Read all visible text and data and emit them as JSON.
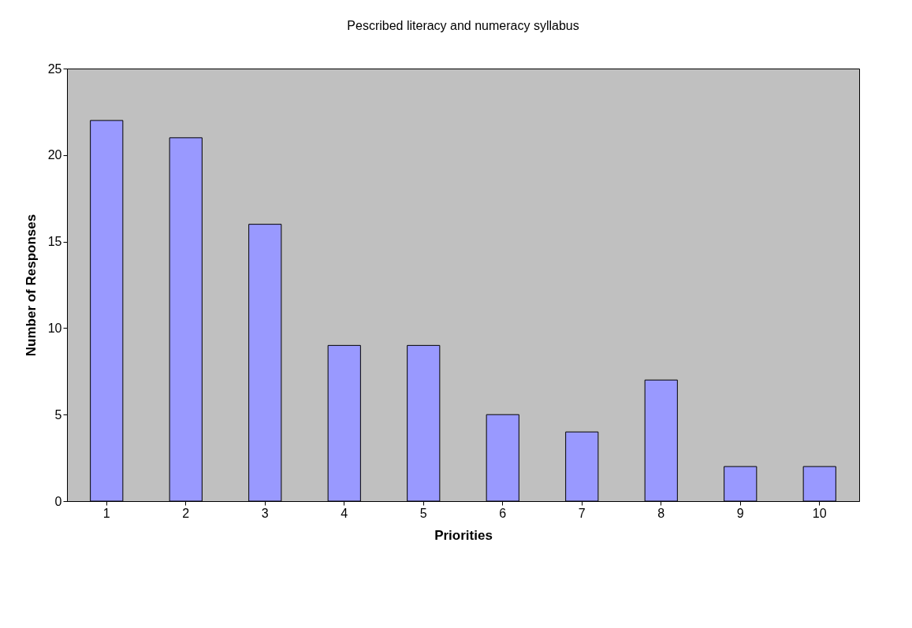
{
  "chart_data": {
    "type": "bar",
    "title": "Pescribed literacy and numeracy syllabus",
    "xlabel": "Priorities",
    "ylabel": "Number of Responses",
    "categories": [
      "1",
      "2",
      "3",
      "4",
      "5",
      "6",
      "7",
      "8",
      "9",
      "10"
    ],
    "values": [
      22,
      21,
      16,
      9,
      9,
      5,
      4,
      7,
      2,
      2
    ],
    "color": "#9999ff",
    "ylim": [
      0,
      25
    ],
    "yticks": [
      0,
      5,
      10,
      15,
      20,
      25
    ],
    "grid": false
  }
}
